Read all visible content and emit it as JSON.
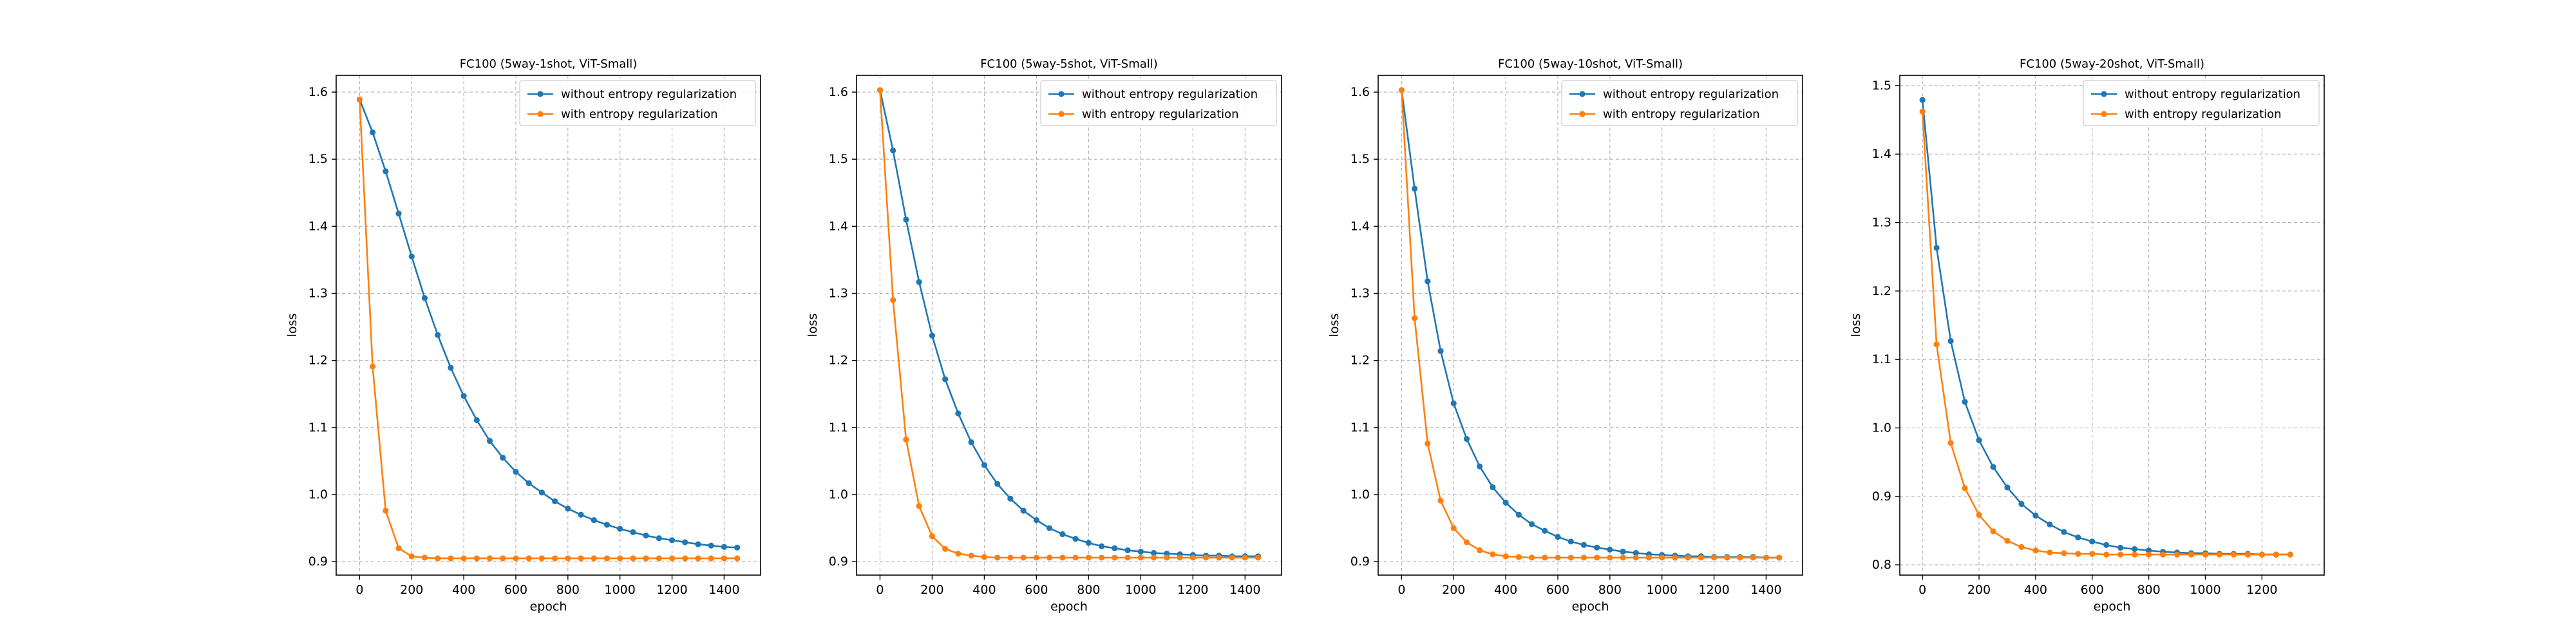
{
  "chart_data": [
    {
      "type": "line",
      "title": "FC100 (5way-1shot, ViT-Small)",
      "xlabel": "epoch",
      "ylabel": "loss",
      "xlim": [
        -90,
        1540
      ],
      "ylim": [
        0.88,
        1.625
      ],
      "xticks": [
        0,
        200,
        400,
        600,
        800,
        1000,
        1200,
        1400
      ],
      "yticks": [
        0.9,
        1.0,
        1.1,
        1.2,
        1.3,
        1.4,
        1.5,
        1.6
      ],
      "ytick_labels": [
        "0.9",
        "1.0",
        "1.1",
        "1.2",
        "1.3",
        "1.4",
        "1.5",
        "1.6"
      ],
      "grid": true,
      "legend_position": "top-right",
      "x": [
        0,
        50,
        100,
        150,
        200,
        250,
        300,
        350,
        400,
        450,
        500,
        550,
        600,
        650,
        700,
        750,
        800,
        850,
        900,
        950,
        1000,
        1050,
        1100,
        1150,
        1200,
        1250,
        1300,
        1350,
        1400,
        1450
      ],
      "series": [
        {
          "name": "without entropy regularization",
          "color": "#1f77b4",
          "values": [
            1.589,
            1.54,
            1.482,
            1.419,
            1.355,
            1.293,
            1.238,
            1.189,
            1.147,
            1.111,
            1.08,
            1.055,
            1.034,
            1.017,
            1.003,
            0.99,
            0.979,
            0.97,
            0.962,
            0.955,
            0.949,
            0.944,
            0.939,
            0.935,
            0.932,
            0.929,
            0.926,
            0.924,
            0.922,
            0.921
          ]
        },
        {
          "name": "with entropy regularization",
          "color": "#ff7f0e",
          "values": [
            1.589,
            1.191,
            0.976,
            0.92,
            0.908,
            0.906,
            0.905,
            0.905,
            0.905,
            0.905,
            0.905,
            0.905,
            0.905,
            0.905,
            0.905,
            0.905,
            0.905,
            0.905,
            0.905,
            0.905,
            0.905,
            0.905,
            0.905,
            0.905,
            0.905,
            0.905,
            0.905,
            0.905,
            0.905,
            0.905
          ]
        }
      ]
    },
    {
      "type": "line",
      "title": "FC100 (5way-5shot, ViT-Small)",
      "xlabel": "epoch",
      "ylabel": "loss",
      "xlim": [
        -90,
        1540
      ],
      "ylim": [
        0.88,
        1.625
      ],
      "xticks": [
        0,
        200,
        400,
        600,
        800,
        1000,
        1200,
        1400
      ],
      "yticks": [
        0.9,
        1.0,
        1.1,
        1.2,
        1.3,
        1.4,
        1.5,
        1.6
      ],
      "ytick_labels": [
        "0.9",
        "1.0",
        "1.1",
        "1.2",
        "1.3",
        "1.4",
        "1.5",
        "1.6"
      ],
      "grid": true,
      "legend_position": "top-right",
      "x": [
        0,
        50,
        100,
        150,
        200,
        250,
        300,
        350,
        400,
        450,
        500,
        550,
        600,
        650,
        700,
        750,
        800,
        850,
        900,
        950,
        1000,
        1050,
        1100,
        1150,
        1200,
        1250,
        1300,
        1350,
        1400,
        1450
      ],
      "series": [
        {
          "name": "without entropy regularization",
          "color": "#1f77b4",
          "values": [
            1.603,
            1.513,
            1.41,
            1.317,
            1.237,
            1.172,
            1.121,
            1.078,
            1.044,
            1.016,
            0.994,
            0.976,
            0.962,
            0.95,
            0.941,
            0.934,
            0.928,
            0.923,
            0.92,
            0.917,
            0.915,
            0.913,
            0.912,
            0.911,
            0.91,
            0.909,
            0.909,
            0.908,
            0.908,
            0.908
          ]
        },
        {
          "name": "with entropy regularization",
          "color": "#ff7f0e",
          "values": [
            1.603,
            1.29,
            1.082,
            0.983,
            0.938,
            0.919,
            0.912,
            0.909,
            0.907,
            0.906,
            0.906,
            0.906,
            0.906,
            0.906,
            0.906,
            0.906,
            0.906,
            0.906,
            0.906,
            0.906,
            0.906,
            0.906,
            0.906,
            0.906,
            0.906,
            0.906,
            0.906,
            0.906,
            0.906,
            0.906
          ]
        }
      ]
    },
    {
      "type": "line",
      "title": "FC100 (5way-10shot, ViT-Small)",
      "xlabel": "epoch",
      "ylabel": "loss",
      "xlim": [
        -90,
        1540
      ],
      "ylim": [
        0.88,
        1.625
      ],
      "xticks": [
        0,
        200,
        400,
        600,
        800,
        1000,
        1200,
        1400
      ],
      "yticks": [
        0.9,
        1.0,
        1.1,
        1.2,
        1.3,
        1.4,
        1.5,
        1.6
      ],
      "ytick_labels": [
        "0.9",
        "1.0",
        "1.1",
        "1.2",
        "1.3",
        "1.4",
        "1.5",
        "1.6"
      ],
      "grid": true,
      "legend_position": "top-right",
      "x": [
        0,
        50,
        100,
        150,
        200,
        250,
        300,
        350,
        400,
        450,
        500,
        550,
        600,
        650,
        700,
        750,
        800,
        850,
        900,
        950,
        1000,
        1050,
        1100,
        1150,
        1200,
        1250,
        1300,
        1350,
        1400,
        1450
      ],
      "series": [
        {
          "name": "without entropy regularization",
          "color": "#1f77b4",
          "values": [
            1.603,
            1.456,
            1.318,
            1.214,
            1.136,
            1.083,
            1.042,
            1.011,
            0.988,
            0.97,
            0.956,
            0.946,
            0.937,
            0.93,
            0.925,
            0.921,
            0.918,
            0.915,
            0.913,
            0.911,
            0.91,
            0.909,
            0.908,
            0.908,
            0.907,
            0.907,
            0.907,
            0.907,
            0.906,
            0.906
          ]
        },
        {
          "name": "with entropy regularization",
          "color": "#ff7f0e",
          "values": [
            1.603,
            1.263,
            1.076,
            0.991,
            0.95,
            0.929,
            0.917,
            0.911,
            0.908,
            0.907,
            0.906,
            0.906,
            0.906,
            0.906,
            0.906,
            0.906,
            0.906,
            0.906,
            0.906,
            0.906,
            0.906,
            0.906,
            0.906,
            0.906,
            0.906,
            0.906,
            0.906,
            0.906,
            0.906,
            0.906
          ]
        }
      ]
    },
    {
      "type": "line",
      "title": "FC100 (5way-20shot, ViT-Small)",
      "xlabel": "epoch",
      "ylabel": "loss",
      "xlim": [
        -80,
        1420
      ],
      "ylim": [
        0.785,
        1.515
      ],
      "xticks": [
        0,
        200,
        400,
        600,
        800,
        1000,
        1200
      ],
      "yticks": [
        0.8,
        0.9,
        1.0,
        1.1,
        1.2,
        1.3,
        1.4,
        1.5
      ],
      "ytick_labels": [
        "0.8",
        "0.9",
        "1.0",
        "1.1",
        "1.2",
        "1.3",
        "1.4",
        "1.5"
      ],
      "grid": true,
      "legend_position": "top-right",
      "x": [
        0,
        50,
        100,
        150,
        200,
        250,
        300,
        350,
        400,
        450,
        500,
        550,
        600,
        650,
        700,
        750,
        800,
        850,
        900,
        950,
        1000,
        1050,
        1100,
        1150,
        1200,
        1250,
        1300
      ],
      "series": [
        {
          "name": "without entropy regularization",
          "color": "#1f77b4",
          "values": [
            1.479,
            1.263,
            1.127,
            1.038,
            0.982,
            0.943,
            0.913,
            0.889,
            0.872,
            0.859,
            0.848,
            0.84,
            0.834,
            0.829,
            0.825,
            0.823,
            0.821,
            0.819,
            0.818,
            0.817,
            0.817,
            0.816,
            0.816,
            0.816,
            0.815,
            0.815,
            0.815
          ]
        },
        {
          "name": "with entropy regularization",
          "color": "#ff7f0e",
          "values": [
            1.462,
            1.122,
            0.978,
            0.912,
            0.873,
            0.849,
            0.835,
            0.826,
            0.821,
            0.818,
            0.817,
            0.816,
            0.816,
            0.815,
            0.815,
            0.815,
            0.815,
            0.815,
            0.815,
            0.815,
            0.815,
            0.815,
            0.815,
            0.815,
            0.815,
            0.815,
            0.815
          ]
        }
      ]
    }
  ]
}
